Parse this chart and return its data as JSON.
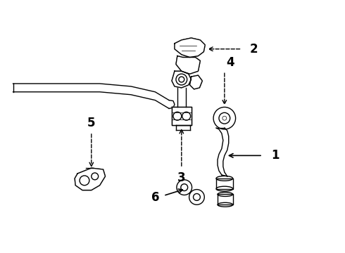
{
  "background_color": "#ffffff",
  "figure_width": 4.9,
  "figure_height": 3.6,
  "dpi": 100,
  "line_color": "#000000",
  "line_width": 1.0,
  "label_fontsize": 12,
  "label_fontweight": "bold"
}
